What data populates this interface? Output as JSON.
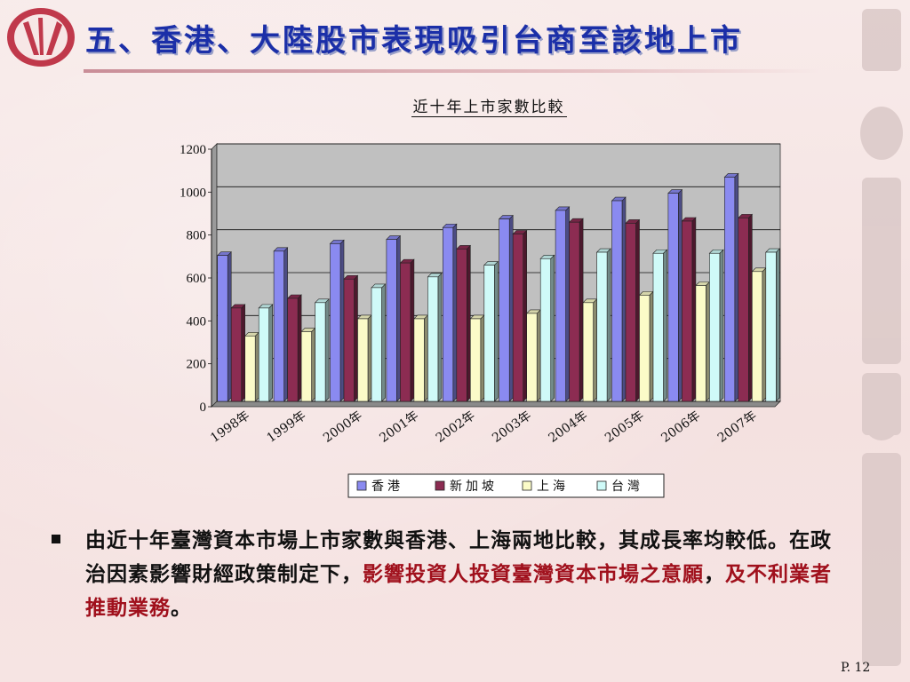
{
  "slide": {
    "title": "五、香港、大陸股市表現吸引台商至該地上市",
    "page_number": "P. 12"
  },
  "chart_data": {
    "type": "bar",
    "title": "近十年上市家數比較",
    "categories": [
      "1998年",
      "1999年",
      "2000年",
      "2001年",
      "2002年",
      "2003年",
      "2004年",
      "2005年",
      "2006年",
      "2007年"
    ],
    "series": [
      {
        "name": "香港",
        "color": "#8a8af0",
        "values": [
          680,
          700,
          735,
          755,
          810,
          850,
          890,
          935,
          970,
          1045
        ]
      },
      {
        "name": "新加坡",
        "color": "#8c2c52",
        "values": [
          435,
          480,
          570,
          645,
          710,
          780,
          835,
          830,
          840,
          855
        ]
      },
      {
        "name": "上海",
        "color": "#fbfbc8",
        "values": [
          305,
          325,
          385,
          385,
          385,
          410,
          460,
          495,
          540,
          605
        ]
      },
      {
        "name": "台灣",
        "color": "#cffaf8",
        "values": [
          435,
          460,
          530,
          580,
          635,
          665,
          695,
          690,
          690,
          695
        ]
      }
    ],
    "ylim": [
      0,
      1200
    ],
    "yticks": [
      "0",
      "200",
      "400",
      "600",
      "800",
      "1000",
      "1200"
    ],
    "grid": true,
    "legend_position": "bottom"
  },
  "bullet": {
    "text_normal": "由近十年臺灣資本市場上市家數與香港、上海兩地比較，其成長率均較低。在政治因素影響財經政策制定下，",
    "text_highlight_1": "影響投資人投資臺灣資本市場之意願",
    "text_middle": "，",
    "text_highlight_2": "及不利業者推動業務",
    "text_end": "。",
    "highlight_color": "#a0101c"
  }
}
